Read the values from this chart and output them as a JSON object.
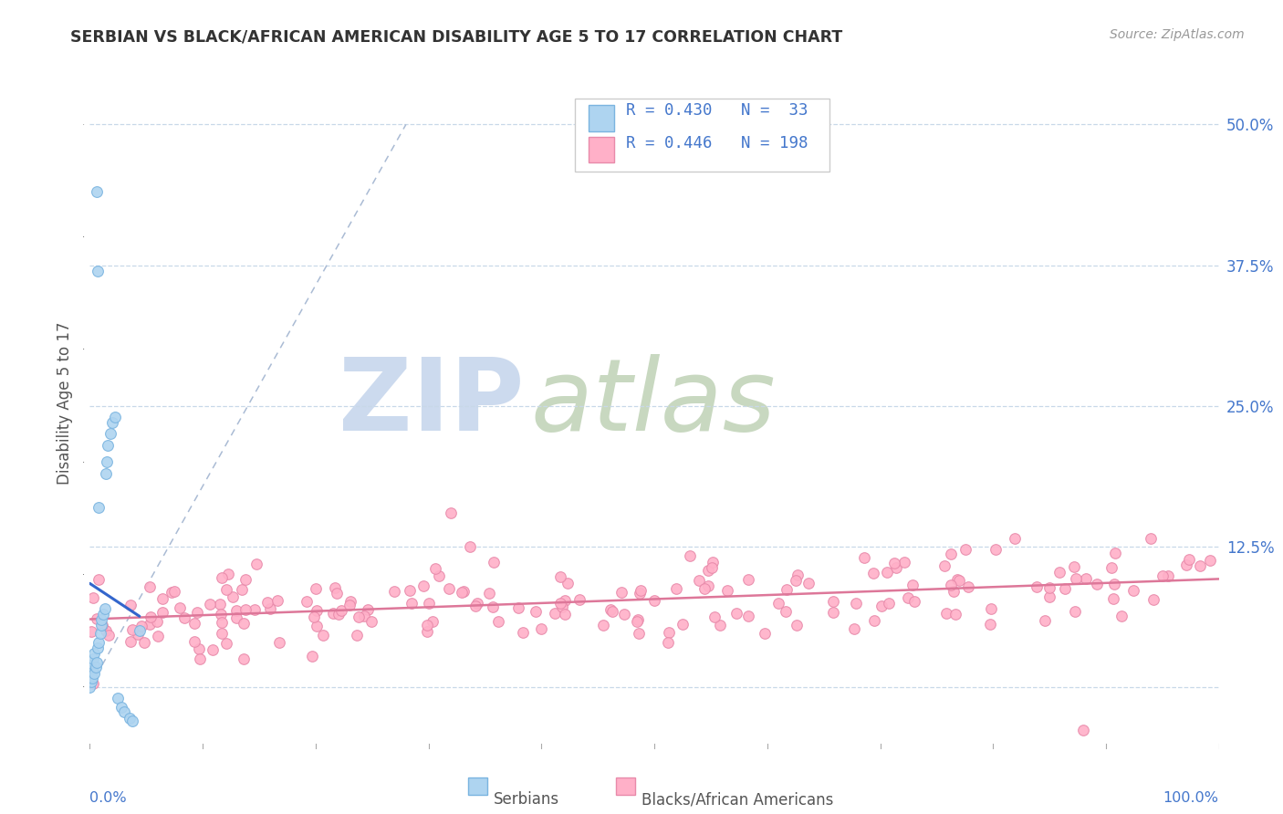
{
  "title": "SERBIAN VS BLACK/AFRICAN AMERICAN DISABILITY AGE 5 TO 17 CORRELATION CHART",
  "source": "Source: ZipAtlas.com",
  "ylabel": "Disability Age 5 to 17",
  "y_ticks": [
    0.0,
    0.125,
    0.25,
    0.375,
    0.5
  ],
  "y_tick_labels": [
    "",
    "12.5%",
    "25.0%",
    "37.5%",
    "50.0%"
  ],
  "x_lim": [
    0.0,
    1.0
  ],
  "y_lim": [
    -0.055,
    0.56
  ],
  "legend_R1": "R = 0.430",
  "legend_N1": "N =  33",
  "legend_R2": "R = 0.446",
  "legend_N2": "N = 198",
  "serbian_color": "#aed4f0",
  "serbian_edge": "#7ab4e0",
  "black_color": "#ffb0c8",
  "black_edge": "#e88aaa",
  "trend1_color": "#3366cc",
  "trend2_color": "#dd7799",
  "dash_color": "#aabbd4",
  "watermark_zip_color": "#c8d8ec",
  "watermark_atlas_color": "#c8d8c0",
  "background_color": "#ffffff",
  "grid_color": "#c8d8e8",
  "title_color": "#333333",
  "axis_label_color": "#4477cc",
  "right_label_color": "#4477cc",
  "bottom_label_color": "#555555",
  "legend_edge_color": "#cccccc"
}
